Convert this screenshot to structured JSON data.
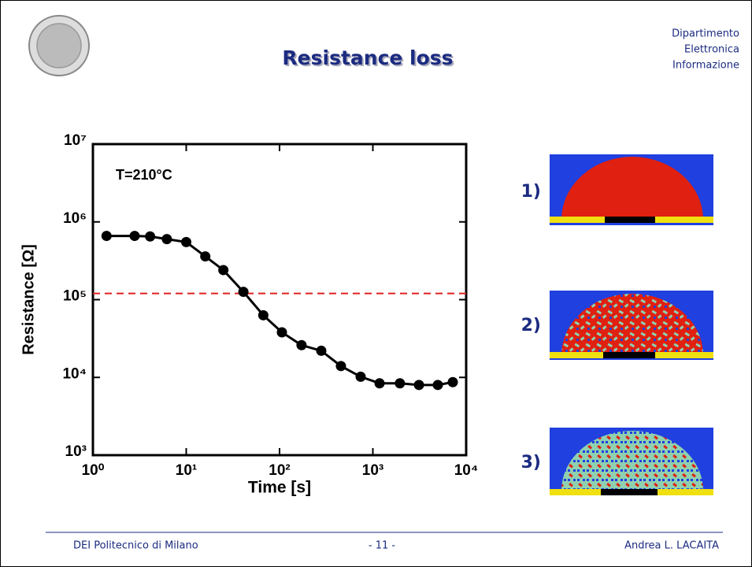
{
  "header": {
    "title": "Resistance loss",
    "department": [
      "Dipartimento",
      "Elettronica",
      "Informazione"
    ]
  },
  "chart_data": {
    "type": "line",
    "x_label": "Time [s]",
    "y_label": "Resistance [Ω]",
    "annotation": "T=210°C",
    "x": [
      1.4,
      2.8,
      4.1,
      6.2,
      10,
      16,
      25,
      41,
      67,
      106,
      172,
      280,
      455,
      740,
      1180,
      1950,
      3120,
      4970,
      7190
    ],
    "values": [
      660000,
      660000,
      650000,
      600000,
      550000,
      360000,
      240000,
      126000,
      63000,
      38000,
      26000,
      22000,
      14000,
      10200,
      8400,
      8400,
      8000,
      8000,
      8700
    ],
    "color": "#000000",
    "xlim": [
      1,
      10000
    ],
    "ylim": [
      1000,
      10000000
    ],
    "log_x": true,
    "log_y": true,
    "xticks": [
      {
        "value": 1,
        "label": "10⁰"
      },
      {
        "value": 10,
        "label": "10¹"
      },
      {
        "value": 100,
        "label": "10²"
      },
      {
        "value": 1000,
        "label": "10³"
      },
      {
        "value": 10000,
        "label": "10⁴"
      }
    ],
    "yticks": [
      {
        "value": 1000,
        "label": "10³"
      },
      {
        "value": 10000,
        "label": "10⁴"
      },
      {
        "value": 100000,
        "label": "10⁵"
      },
      {
        "value": 1000000,
        "label": "10⁶"
      },
      {
        "value": 10000000,
        "label": "10⁷"
      }
    ],
    "threshold": {
      "value": 120000,
      "color": "#e02020"
    }
  },
  "panels": [
    "1)",
    "2)",
    "3)"
  ],
  "footer": {
    "left": "DEI Politecnico di Milano",
    "center": "- 11 -",
    "right": "Andrea L. LACAITA"
  }
}
